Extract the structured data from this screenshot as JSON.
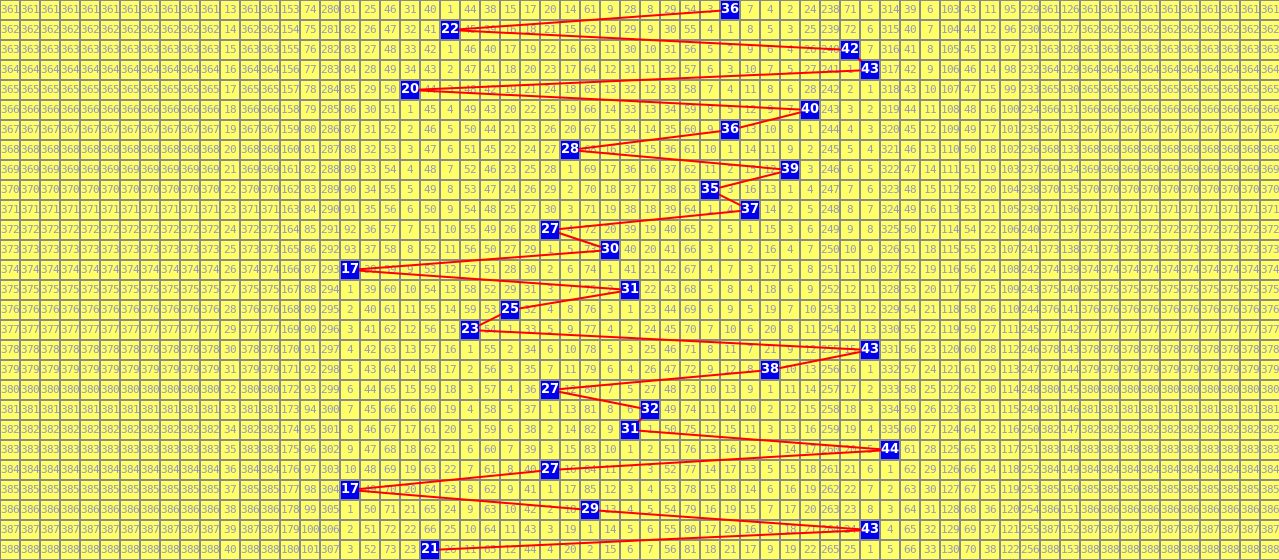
{
  "chart_data": {
    "type": "table",
    "description_of_cells": "omission counts; highlighted cell shows drawn number",
    "first_row_values": [
      361,
      361,
      361,
      361,
      361,
      361,
      361,
      361,
      361,
      361,
      361,
      13,
      361,
      361,
      153,
      74,
      280,
      81,
      25,
      46,
      31,
      40,
      1,
      44,
      38,
      15,
      17,
      20,
      14,
      61,
      9,
      28,
      8,
      29,
      54,
      3,
      36,
      7,
      4,
      2,
      24,
      238,
      71,
      5,
      314,
      39,
      6,
      103,
      43,
      11,
      95,
      229,
      361,
      126,
      361,
      361,
      361,
      361,
      361,
      361,
      361,
      361,
      361,
      361
    ],
    "hits": [
      36,
      22,
      42,
      43,
      20,
      40,
      36,
      28,
      39,
      35,
      37,
      27,
      30,
      17,
      31,
      25,
      23,
      43,
      38,
      27,
      32,
      31,
      44,
      27,
      17,
      29,
      43,
      21
    ]
  },
  "colors": {
    "cell_background": "#ffff66",
    "cell_text": "#9a9ab8",
    "grid_line": "#8a8a8a",
    "hit_background": "#0000ee",
    "hit_text": "#ffffff",
    "trend_line": "#ff0000"
  }
}
